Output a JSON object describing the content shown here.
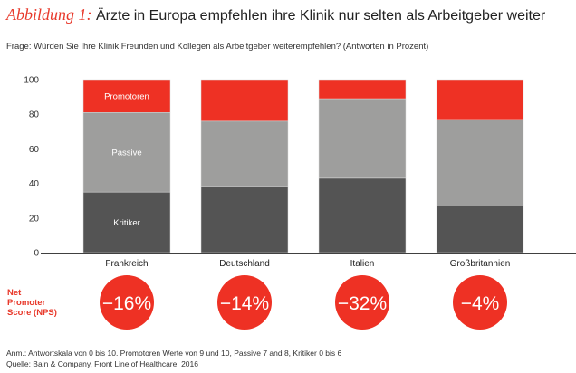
{
  "title_prefix": "Abbildung 1:",
  "title": "Ärzte in Europa empfehlen ihre Klinik nur selten als Arbeitgeber weiter",
  "subtitle": "Frage: Würden Sie Ihre Klinik Freunden und Kollegen als Arbeitgeber weiterempfehlen? (Antworten in Prozent)",
  "nps_label": [
    "Net",
    "Promoter",
    "Score (NPS)"
  ],
  "notes": [
    "Anm.: Antwortskala von 0 bis 10. Promotoren Werte von 9 und 10, Passive 7 and 8, Kritiker 0 bis 6",
    "Quelle: Bain & Company, Front Line of Healthcare, 2016"
  ],
  "chart_data": {
    "type": "bar",
    "stacked": true,
    "categories": [
      "Frankreich",
      "Deutschland",
      "Italien",
      "Großbritannien"
    ],
    "series": [
      {
        "name": "Kritiker",
        "values": [
          35,
          38,
          43,
          27
        ],
        "color": "#545454"
      },
      {
        "name": "Passive",
        "values": [
          46,
          38,
          46,
          50
        ],
        "color": "#9e9e9d"
      },
      {
        "name": "Promotoren",
        "values": [
          19,
          24,
          11,
          23
        ],
        "color": "#ee3124"
      }
    ],
    "nps": [
      "−16%",
      "−14%",
      "−32%",
      "−4%"
    ],
    "ylim": [
      0,
      100
    ],
    "yticks": [
      0,
      20,
      40,
      60,
      80,
      100
    ],
    "grid": false
  }
}
